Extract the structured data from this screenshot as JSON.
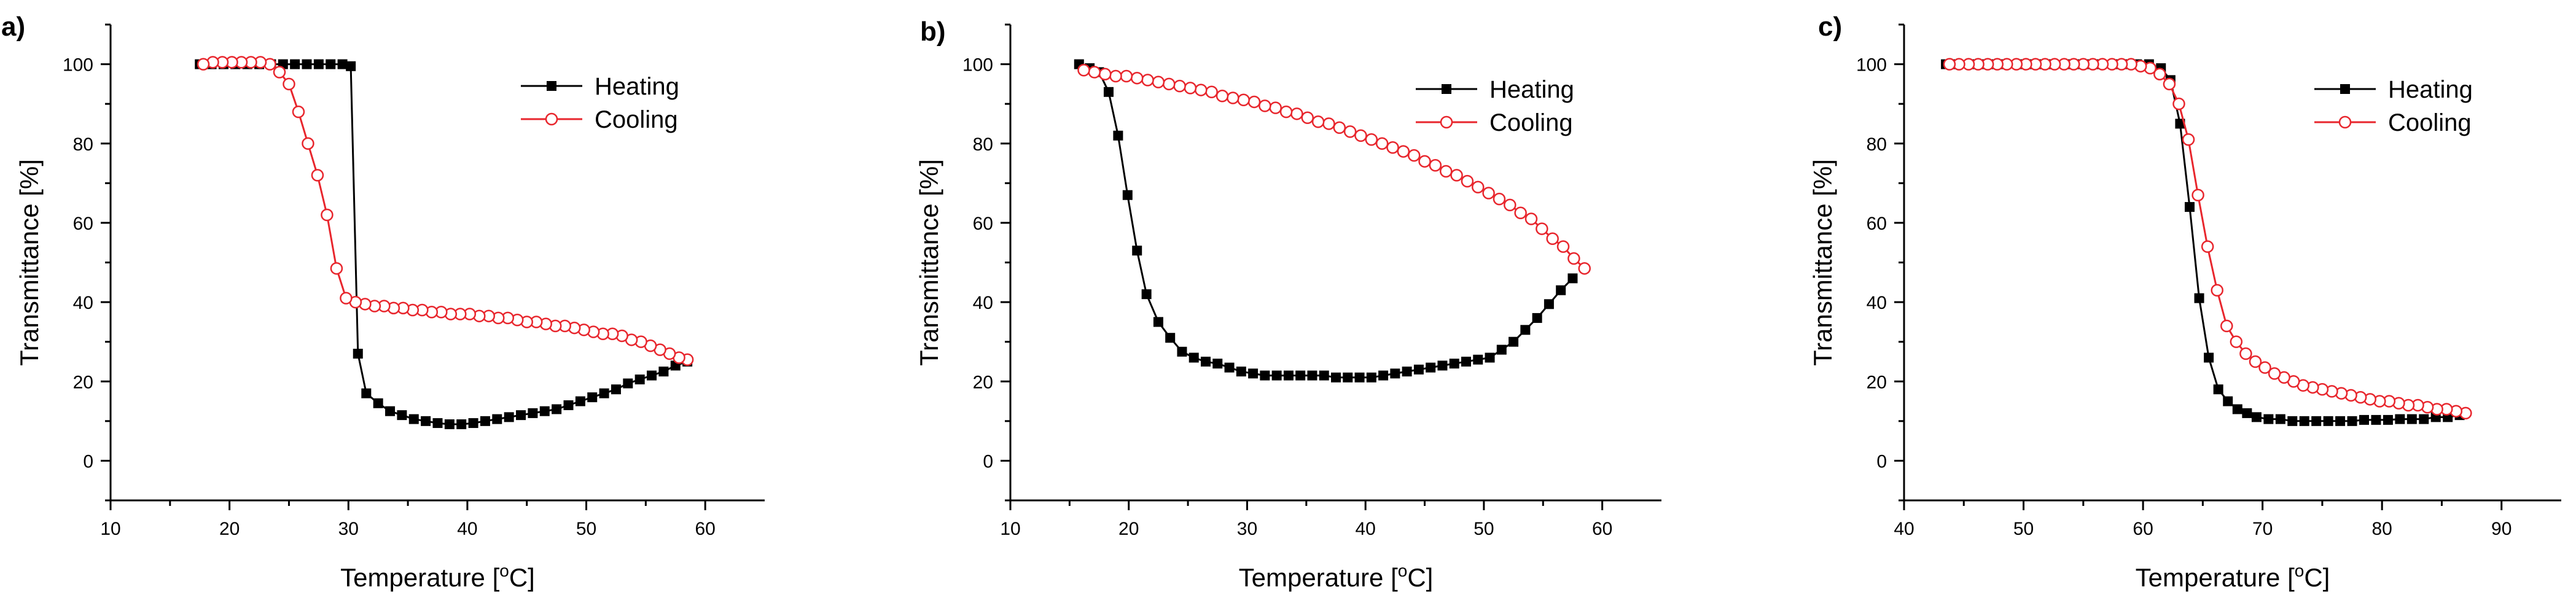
{
  "chart_data": [
    {
      "type": "line",
      "panel_label": "a)",
      "xlabel": "Temperature [",
      "xlabel_sup": "o",
      "xlabel_end": "C]",
      "ylabel": "Transmittance [%]",
      "xlim": [
        10,
        65
      ],
      "ylim": [
        -10,
        110
      ],
      "xticks": [
        10,
        20,
        30,
        40,
        50,
        60
      ],
      "yticks": [
        0,
        20,
        40,
        60,
        80,
        100
      ],
      "legend_position": "top-right",
      "series": [
        {
          "name": "Heating",
          "color": "#000000",
          "marker": "filled-square",
          "x": [
            17.5,
            18.5,
            19.5,
            20.5,
            21.5,
            22.5,
            23.5,
            24.5,
            25.5,
            26.5,
            27.5,
            28.5,
            29.5,
            30.2,
            30.8,
            31.5,
            32.5,
            33.5,
            34.5,
            35.5,
            36.5,
            37.5,
            38.5,
            39.5,
            40.5,
            41.5,
            42.5,
            43.5,
            44.5,
            45.5,
            46.5,
            47.5,
            48.5,
            49.5,
            50.5,
            51.5,
            52.5,
            53.5,
            54.5,
            55.5,
            56.5,
            57.5,
            58.5
          ],
          "y": [
            100,
            100,
            100,
            100,
            100,
            100,
            100,
            100,
            100,
            100,
            100,
            100,
            100,
            99.5,
            27,
            17,
            14.5,
            12.5,
            11.5,
            10.5,
            10,
            9.5,
            9.2,
            9.2,
            9.5,
            10,
            10.5,
            11,
            11.5,
            12,
            12.5,
            13,
            14,
            15,
            16,
            17,
            18,
            19.5,
            20.5,
            21.5,
            22.5,
            24,
            25
          ]
        },
        {
          "name": "Cooling",
          "color": "#e8262d",
          "marker": "open-circle",
          "x": [
            58.5,
            57.8,
            57,
            56.2,
            55.4,
            54.6,
            53.8,
            53,
            52.2,
            51.4,
            50.6,
            49.8,
            49,
            48.2,
            47.4,
            46.6,
            45.8,
            45,
            44.2,
            43.4,
            42.6,
            41.8,
            41,
            40.2,
            39.4,
            38.6,
            37.8,
            37,
            36.2,
            35.4,
            34.6,
            33.8,
            33,
            32.2,
            31.4,
            30.6,
            29.8,
            29,
            28.2,
            27.4,
            26.6,
            25.8,
            25,
            24.2,
            23.4,
            22.6,
            21.8,
            21,
            20.2,
            19.4,
            18.6,
            17.8
          ],
          "y": [
            25.5,
            26,
            27,
            28,
            29,
            30,
            30.5,
            31.5,
            32,
            32,
            32.5,
            33,
            33.5,
            34,
            34,
            34.5,
            35,
            35,
            35.5,
            36,
            36,
            36.5,
            36.5,
            37,
            37,
            37,
            37.5,
            37.5,
            38,
            38,
            38.5,
            38.5,
            39,
            39,
            39.5,
            40,
            41,
            48.5,
            62,
            72,
            80,
            88,
            95,
            98,
            100,
            100.5,
            100.5,
            100.5,
            100.5,
            100.5,
            100.5,
            100
          ]
        }
      ]
    },
    {
      "type": "line",
      "panel_label": "b)",
      "xlabel": "Temperature [",
      "xlabel_sup": "o",
      "xlabel_end": "C]",
      "ylabel": "Transmittance [%]",
      "xlim": [
        10,
        65
      ],
      "ylim": [
        -10,
        110
      ],
      "xticks": [
        10,
        20,
        30,
        40,
        50,
        60
      ],
      "yticks": [
        0,
        20,
        40,
        60,
        80,
        100
      ],
      "legend_position": "top-right",
      "series": [
        {
          "name": "Heating",
          "color": "#000000",
          "marker": "filled-square",
          "x": [
            15.8,
            16.7,
            17.5,
            18.3,
            19.1,
            19.9,
            20.7,
            21.5,
            22.5,
            23.5,
            24.5,
            25.5,
            26.5,
            27.5,
            28.5,
            29.5,
            30.5,
            31.5,
            32.5,
            33.5,
            34.5,
            35.5,
            36.5,
            37.5,
            38.5,
            39.5,
            40.5,
            41.5,
            42.5,
            43.5,
            44.5,
            45.5,
            46.5,
            47.5,
            48.5,
            49.5,
            50.5,
            51.5,
            52.5,
            53.5,
            54.5,
            55.5,
            56.5,
            57.5
          ],
          "y": [
            100,
            99,
            98,
            93,
            82,
            67,
            53,
            42,
            35,
            31,
            27.5,
            26,
            25,
            24.5,
            23.5,
            22.5,
            22,
            21.5,
            21.5,
            21.5,
            21.5,
            21.5,
            21.5,
            21,
            21,
            21,
            21,
            21.5,
            22,
            22.5,
            23,
            23.5,
            24,
            24.5,
            25,
            25.5,
            26,
            28,
            30,
            33,
            36,
            39.5,
            43,
            46
          ]
        },
        {
          "name": "Cooling",
          "color": "#e8262d",
          "marker": "open-circle",
          "x": [
            58.5,
            57.6,
            56.7,
            55.8,
            54.9,
            54,
            53.1,
            52.2,
            51.3,
            50.4,
            49.5,
            48.6,
            47.7,
            46.8,
            45.9,
            45,
            44.1,
            43.2,
            42.3,
            41.4,
            40.5,
            39.6,
            38.7,
            37.8,
            36.9,
            36,
            35.1,
            34.2,
            33.3,
            32.4,
            31.5,
            30.6,
            29.7,
            28.8,
            27.9,
            27,
            26.1,
            25.2,
            24.3,
            23.4,
            22.5,
            21.6,
            20.7,
            19.8,
            18.9,
            18,
            17.1,
            16.2
          ],
          "y": [
            48.5,
            51,
            54,
            56,
            58.5,
            61,
            62.5,
            64.5,
            66,
            67.5,
            69,
            70.5,
            72,
            73,
            74.5,
            75.5,
            77,
            78,
            79,
            80,
            81,
            82,
            83,
            84,
            85,
            85.5,
            86.5,
            87.5,
            88,
            89,
            89.5,
            90.5,
            91,
            91.5,
            92,
            93,
            93.5,
            94,
            94.5,
            95,
            95.5,
            96,
            96.5,
            97,
            97,
            97.5,
            98,
            98.5
          ]
        }
      ]
    },
    {
      "type": "line",
      "panel_label": "c)",
      "xlabel": "Temperature [",
      "xlabel_sup": "o",
      "xlabel_end": "C]",
      "ylabel": "Transmittance [%]",
      "xlim": [
        40,
        95
      ],
      "ylim": [
        -10,
        110
      ],
      "xticks": [
        40,
        50,
        60,
        70,
        80,
        90
      ],
      "yticks": [
        0,
        20,
        40,
        60,
        80,
        100
      ],
      "legend_position": "top-right",
      "series": [
        {
          "name": "Heating",
          "color": "#000000",
          "marker": "filled-square",
          "x": [
            43.5,
            44.5,
            45.5,
            46.5,
            47.5,
            48.5,
            49.5,
            50.5,
            51.5,
            52.5,
            53.5,
            54.5,
            55.5,
            56.5,
            57.5,
            58.5,
            59.5,
            60.5,
            61.5,
            62.3,
            63.1,
            63.9,
            64.7,
            65.5,
            66.3,
            67.1,
            67.9,
            68.7,
            69.5,
            70.5,
            71.5,
            72.5,
            73.5,
            74.5,
            75.5,
            76.5,
            77.5,
            78.5,
            79.5,
            80.5,
            81.5,
            82.5,
            83.5,
            84.5,
            85.5,
            86.5
          ],
          "y": [
            100,
            100,
            100,
            100,
            100,
            100,
            100,
            100,
            100,
            100,
            100,
            100,
            100,
            100,
            100,
            100,
            100,
            100,
            99,
            96,
            85,
            64,
            41,
            26,
            18,
            15,
            13,
            12,
            11,
            10.5,
            10.5,
            10,
            10,
            10,
            10,
            10,
            10,
            10.3,
            10.3,
            10.3,
            10.5,
            10.5,
            10.5,
            11,
            11,
            11.5
          ]
        },
        {
          "name": "Cooling",
          "color": "#e8262d",
          "marker": "open-circle",
          "x": [
            87,
            86.2,
            85.4,
            84.6,
            83.8,
            83,
            82.2,
            81.4,
            80.6,
            79.8,
            79,
            78.2,
            77.4,
            76.6,
            75.8,
            75,
            74.2,
            73.4,
            72.6,
            71.8,
            71,
            70.2,
            69.4,
            68.6,
            67.8,
            67,
            66.2,
            65.4,
            64.6,
            63.8,
            63,
            62.2,
            61.4,
            60.6,
            59.8,
            59,
            58.2,
            57.4,
            56.6,
            55.8,
            55,
            54.2,
            53.4,
            52.6,
            51.8,
            51,
            50.2,
            49.4,
            48.6,
            47.8,
            47,
            46.2,
            45.4,
            44.6,
            43.8
          ],
          "y": [
            12,
            12.5,
            13,
            13,
            13.5,
            14,
            14,
            14.5,
            15,
            15,
            15.5,
            16,
            16.5,
            17,
            17.5,
            18,
            18.5,
            19,
            20,
            21,
            22,
            23.5,
            25,
            27,
            30,
            34,
            43,
            54,
            67,
            81,
            90,
            95,
            97.5,
            99,
            99.5,
            100,
            100,
            100,
            100,
            100,
            100,
            100,
            100,
            100,
            100,
            100,
            100,
            100,
            100,
            100,
            100,
            100,
            100,
            100,
            100
          ]
        }
      ]
    }
  ]
}
